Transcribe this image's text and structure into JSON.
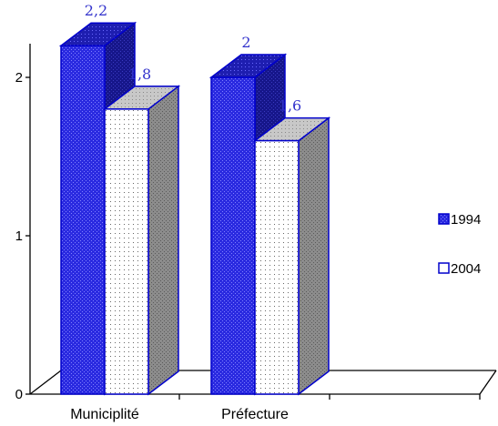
{
  "chart_data": {
    "type": "bar",
    "categories": [
      "Municiplité",
      "Préfecture"
    ],
    "series": [
      {
        "name": "1994",
        "values": [
          2.2,
          2
        ],
        "labels": [
          "2,2",
          "2"
        ]
      },
      {
        "name": "2004",
        "values": [
          1.8,
          1.6
        ],
        "labels": [
          "1,8",
          "1,6"
        ]
      }
    ],
    "ylim": [
      0,
      2.2
    ],
    "yticks": [
      "0",
      "1",
      "2"
    ],
    "legend_position": "right",
    "grid": false,
    "colors": {
      "series_1994": "#2222dd",
      "series_2004": "#ffffff"
    }
  }
}
